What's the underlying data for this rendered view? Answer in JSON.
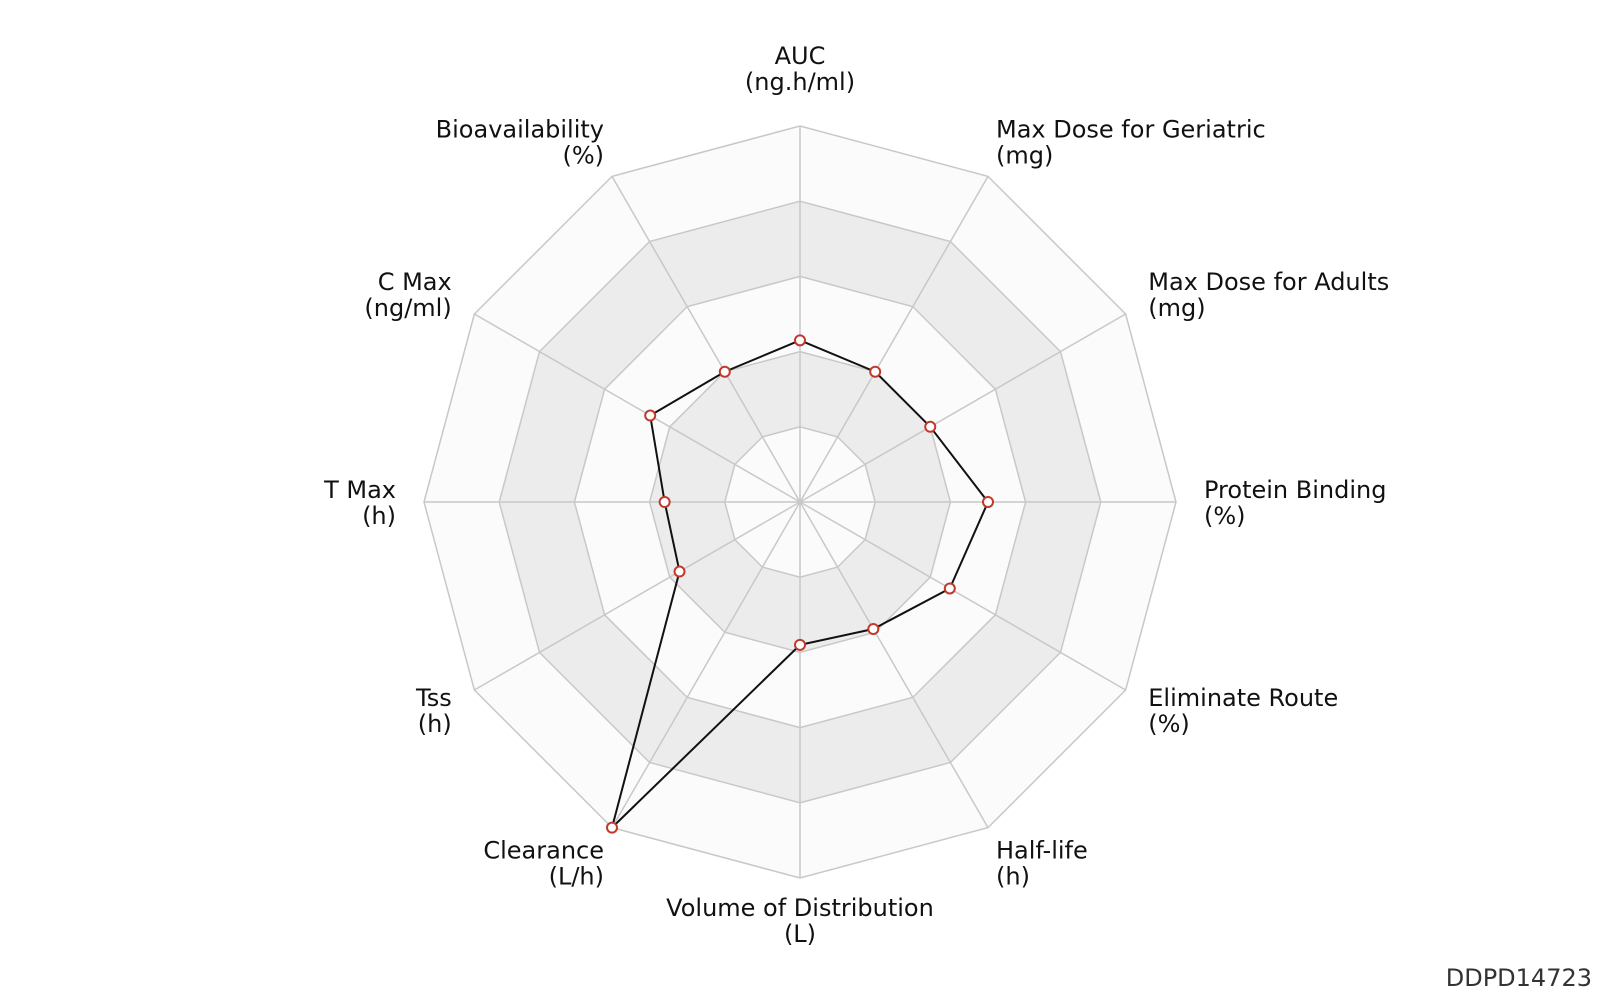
{
  "chart_data": {
    "type": "radar",
    "title": "",
    "axes": [
      {
        "name": "AUC",
        "unit": "(ng.h/ml)"
      },
      {
        "name": "Max Dose for Geriatric",
        "unit": "(mg)"
      },
      {
        "name": "Max Dose for Adults",
        "unit": "(mg)"
      },
      {
        "name": "Protein Binding",
        "unit": "(%)"
      },
      {
        "name": "Eliminate Route",
        "unit": "(%)"
      },
      {
        "name": "Half-life",
        "unit": "(h)"
      },
      {
        "name": "Volume of Distribution",
        "unit": "(L)"
      },
      {
        "name": "Clearance",
        "unit": "(L/h)"
      },
      {
        "name": "Tss",
        "unit": "(h)"
      },
      {
        "name": "T Max",
        "unit": "(h)"
      },
      {
        "name": "C Max",
        "unit": "(ng/ml)"
      },
      {
        "name": "Bioavailability",
        "unit": "(%)"
      }
    ],
    "range": [
      0,
      1
    ],
    "rings": 5,
    "series": [
      {
        "values": [
          0.43,
          0.4,
          0.4,
          0.5,
          0.46,
          0.39,
          0.38,
          1.0,
          0.37,
          0.36,
          0.46,
          0.4
        ]
      }
    ],
    "colors": {
      "band_light": "#fbfbfb",
      "band_dark": "#ececec",
      "grid": "#c8c8c8",
      "line": "#111111",
      "marker_stroke": "#c0392b",
      "marker_fill": "#ffffff"
    },
    "grid": true,
    "legend": "none"
  },
  "watermark": "DDPD14723"
}
